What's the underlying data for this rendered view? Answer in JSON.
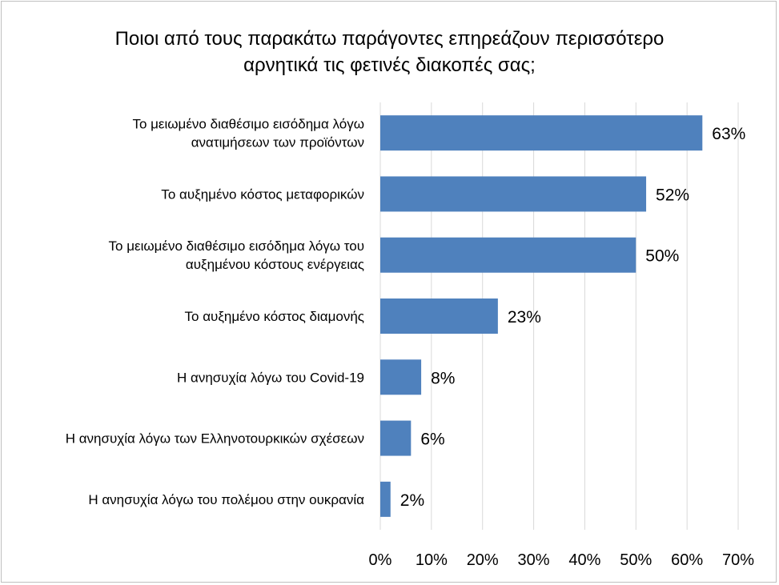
{
  "chart_data": {
    "type": "bar",
    "orientation": "horizontal",
    "title_lines": [
      "Ποιοι από τους παρακάτω παράγοντες επηρεάζουν περισσότερο",
      "αρνητικά τις φετινές διακοπές σας;"
    ],
    "categories": [
      [
        "Το μειωμένο διαθέσιμο εισόδημα λόγω",
        "ανατιμήσεων των προϊόντων"
      ],
      [
        "Το αυξημένο κόστος μεταφορικών"
      ],
      [
        "Το μειωμένο διαθέσιμο εισόδημα λόγω του",
        "αυξημένου κόστους ενέργειας"
      ],
      [
        "Το αυξημένο κόστος διαμονής"
      ],
      [
        "Η ανησυχία λόγω του Covid-19"
      ],
      [
        "Η ανησυχία λόγω των Ελληνοτουρκικών σχέσεων"
      ],
      [
        "Η ανησυχία λόγω του πολέμου στην ουκρανία"
      ]
    ],
    "values": [
      63,
      52,
      50,
      23,
      8,
      6,
      2
    ],
    "value_labels": [
      "63%",
      "52%",
      "50%",
      "23%",
      "8%",
      "6%",
      "2%"
    ],
    "xlim": [
      0,
      70
    ],
    "xticks": [
      "0%",
      "10%",
      "20%",
      "30%",
      "40%",
      "50%",
      "60%",
      "70%"
    ],
    "grid": true,
    "legend": "none",
    "bar_color": "#4f81bd",
    "grid_color": "#d9d9d9"
  }
}
